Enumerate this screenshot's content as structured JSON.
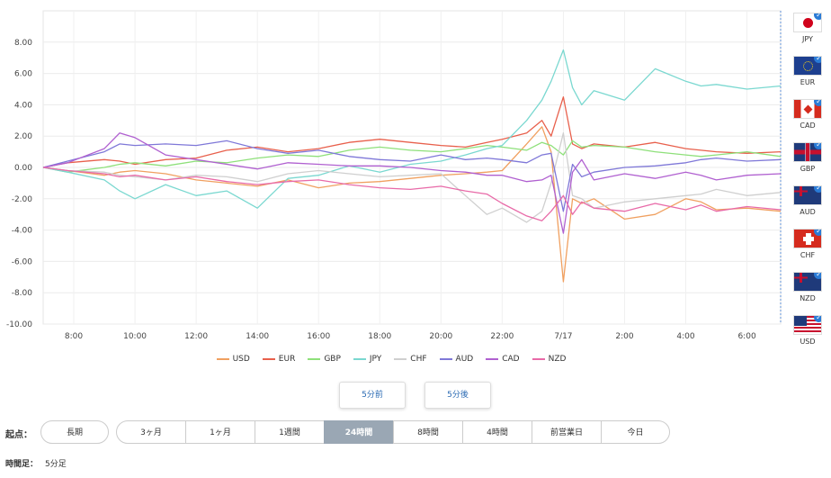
{
  "chart_data": {
    "type": "line",
    "ylim": [
      -10,
      10
    ],
    "yticks": [
      "8.00",
      "6.00",
      "4.00",
      "2.00",
      "0.00",
      "-2.00",
      "-4.00",
      "-6.00",
      "-8.00",
      "-10.00"
    ],
    "x_tick_labels": [
      "8:00",
      "10:00",
      "12:00",
      "14:00",
      "16:00",
      "18:00",
      "20:00",
      "22:00",
      "7/17",
      "2:00",
      "4:00",
      "6:00"
    ],
    "x_hours": [
      7,
      7.8,
      9,
      9.5,
      10,
      11,
      12,
      13,
      14,
      15,
      16,
      17,
      18,
      19,
      20,
      20.8,
      21.5,
      22,
      22.8,
      23.3,
      23.6,
      24.0,
      24.3,
      24.6,
      25,
      26,
      27,
      28,
      28.5,
      29,
      30,
      31.1
    ],
    "grid": true,
    "series": [
      {
        "name": "USD",
        "color": "#f0a060",
        "values": [
          0,
          -0.2,
          -0.5,
          -0.3,
          -0.2,
          -0.4,
          -0.8,
          -1.0,
          -1.2,
          -0.8,
          -1.3,
          -1.0,
          -0.9,
          -0.7,
          -0.5,
          -0.4,
          -0.3,
          -0.2,
          1.5,
          2.6,
          1.0,
          -7.3,
          -2.0,
          -2.3,
          -2.0,
          -3.3,
          -3.0,
          -2.0,
          -2.2,
          -2.7,
          -2.6,
          -2.8
        ]
      },
      {
        "name": "EUR",
        "color": "#e8604c",
        "values": [
          0,
          0.3,
          0.5,
          0.4,
          0.2,
          0.5,
          0.6,
          1.1,
          1.3,
          1.0,
          1.2,
          1.6,
          1.8,
          1.6,
          1.4,
          1.3,
          1.6,
          1.8,
          2.2,
          3.0,
          2.0,
          4.5,
          1.5,
          1.2,
          1.5,
          1.3,
          1.6,
          1.2,
          1.1,
          1.0,
          0.9,
          1.0
        ]
      },
      {
        "name": "GBP",
        "color": "#8ee07a",
        "values": [
          0,
          -0.3,
          0,
          0.2,
          0.3,
          0.1,
          0.4,
          0.3,
          0.6,
          0.8,
          0.7,
          1.1,
          1.3,
          1.1,
          1.0,
          1.2,
          1.4,
          1.3,
          1.1,
          1.6,
          1.4,
          0.8,
          1.7,
          1.3,
          1.4,
          1.3,
          1.0,
          0.8,
          0.7,
          0.8,
          1.0,
          0.7
        ]
      },
      {
        "name": "JPY",
        "color": "#7ad8d0",
        "values": [
          0,
          -0.3,
          -0.8,
          -1.5,
          -2.0,
          -1.1,
          -1.8,
          -1.5,
          -2.6,
          -0.7,
          -0.5,
          0.1,
          -0.3,
          0.2,
          0.4,
          0.8,
          1.2,
          1.4,
          3.0,
          4.3,
          5.5,
          7.5,
          5.1,
          4.0,
          4.9,
          4.3,
          6.3,
          5.5,
          5.2,
          5.3,
          5.0,
          5.2
        ]
      },
      {
        "name": "CHF",
        "color": "#cfcfcf",
        "values": [
          0,
          -0.2,
          -0.3,
          -0.5,
          -0.6,
          -0.8,
          -0.5,
          -0.6,
          -0.9,
          -0.4,
          -0.2,
          -0.4,
          -0.6,
          -0.5,
          -0.4,
          -1.8,
          -3.0,
          -2.6,
          -3.5,
          -2.8,
          -1.0,
          2.2,
          -1.8,
          -2.0,
          -2.6,
          -2.2,
          -2.0,
          -1.8,
          -1.7,
          -1.4,
          -1.8,
          -1.6
        ]
      },
      {
        "name": "AUD",
        "color": "#7f78d8",
        "values": [
          0,
          0.4,
          1.0,
          1.5,
          1.4,
          1.5,
          1.4,
          1.7,
          1.2,
          0.9,
          1.1,
          0.7,
          0.5,
          0.4,
          0.8,
          0.5,
          0.6,
          0.5,
          0.3,
          0.8,
          0.9,
          -2.8,
          0.2,
          -0.6,
          -0.3,
          0.0,
          0.1,
          0.3,
          0.5,
          0.6,
          0.4,
          0.5
        ]
      },
      {
        "name": "CAD",
        "color": "#b060d0",
        "values": [
          0,
          0.3,
          1.2,
          2.2,
          1.9,
          0.8,
          0.5,
          0.2,
          -0.1,
          0.3,
          0.2,
          0.1,
          0.1,
          0.0,
          -0.2,
          -0.3,
          -0.5,
          -0.5,
          -0.9,
          -0.8,
          -0.5,
          -4.2,
          -0.3,
          0.5,
          -0.8,
          -0.4,
          -0.7,
          -0.3,
          -0.5,
          -0.8,
          -0.5,
          -0.4
        ]
      },
      {
        "name": "NZD",
        "color": "#e86aa8",
        "values": [
          0,
          -0.2,
          -0.4,
          -0.6,
          -0.5,
          -0.8,
          -0.6,
          -0.9,
          -1.1,
          -0.9,
          -0.8,
          -1.1,
          -1.3,
          -1.4,
          -1.2,
          -1.5,
          -1.7,
          -2.3,
          -3.1,
          -3.4,
          -2.8,
          -1.8,
          -3.0,
          -2.2,
          -2.6,
          -2.8,
          -2.3,
          -2.7,
          -2.4,
          -2.8,
          -2.5,
          -2.7
        ]
      }
    ]
  },
  "flags": [
    {
      "code": "JPY"
    },
    {
      "code": "EUR"
    },
    {
      "code": "CAD"
    },
    {
      "code": "GBP"
    },
    {
      "code": "AUD"
    },
    {
      "code": "CHF"
    },
    {
      "code": "NZD"
    },
    {
      "code": "USD"
    }
  ],
  "check_glyph": "✓",
  "buttons": {
    "prev": "5分前",
    "next": "5分後"
  },
  "base": {
    "label": "起点：",
    "long": "長期",
    "periods": [
      "3ヶ月",
      "1ヶ月",
      "1週間",
      "24時間",
      "8時間",
      "4時間",
      "前営業日",
      "今日"
    ],
    "active": "24時間"
  },
  "footer": {
    "label": "時間足：",
    "value": "5分足"
  }
}
